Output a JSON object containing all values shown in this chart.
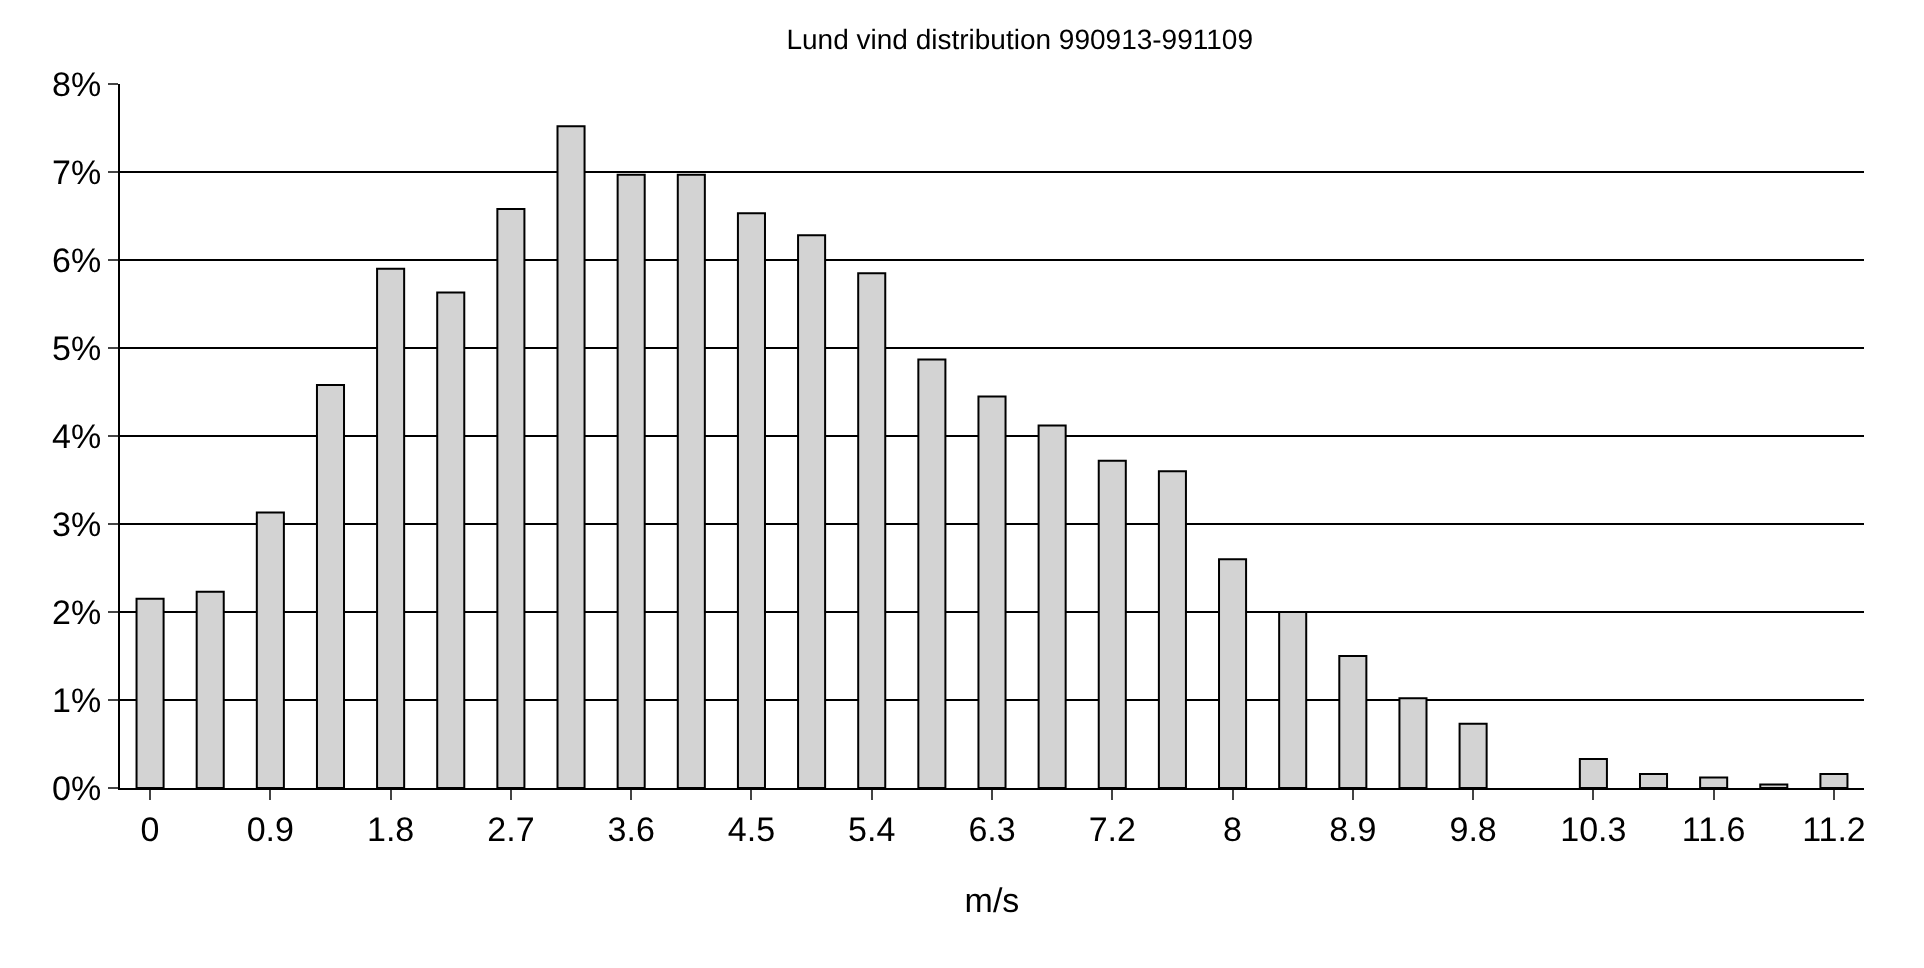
{
  "chart_data": {
    "type": "bar",
    "title": "Lund vind distribution 990913-991109",
    "xlabel": "m/s",
    "categories": [
      "0",
      null,
      "0.9",
      null,
      "1.8",
      null,
      "2.7",
      null,
      "3.6",
      null,
      "4.5",
      null,
      "5.4",
      null,
      "6.3",
      null,
      "7.2",
      null,
      "8",
      null,
      "8.9",
      null,
      "9.8",
      null,
      "10.3",
      null,
      "11.6",
      null,
      "11.2"
    ],
    "values": [
      2.15,
      2.23,
      3.13,
      4.58,
      5.9,
      5.63,
      6.58,
      7.52,
      6.97,
      6.97,
      6.53,
      6.28,
      5.85,
      4.87,
      4.45,
      4.12,
      3.72,
      3.6,
      2.6,
      2.0,
      1.5,
      1.02,
      0.73,
      null,
      0.33,
      0.16,
      0.12,
      0.04,
      0.16
    ],
    "color": "#d3d3d3",
    "ylim": [
      0,
      8
    ],
    "yticks": [
      {
        "value": 0,
        "label": "0%"
      },
      {
        "value": 1,
        "label": "1%"
      },
      {
        "value": 2,
        "label": "2%"
      },
      {
        "value": 3,
        "label": "3%"
      },
      {
        "value": 4,
        "label": "4%"
      },
      {
        "value": 5,
        "label": "5%"
      },
      {
        "value": 6,
        "label": "6%"
      },
      {
        "value": 7,
        "label": "7%"
      },
      {
        "value": 8,
        "label": "8%"
      }
    ],
    "grid": "y"
  }
}
